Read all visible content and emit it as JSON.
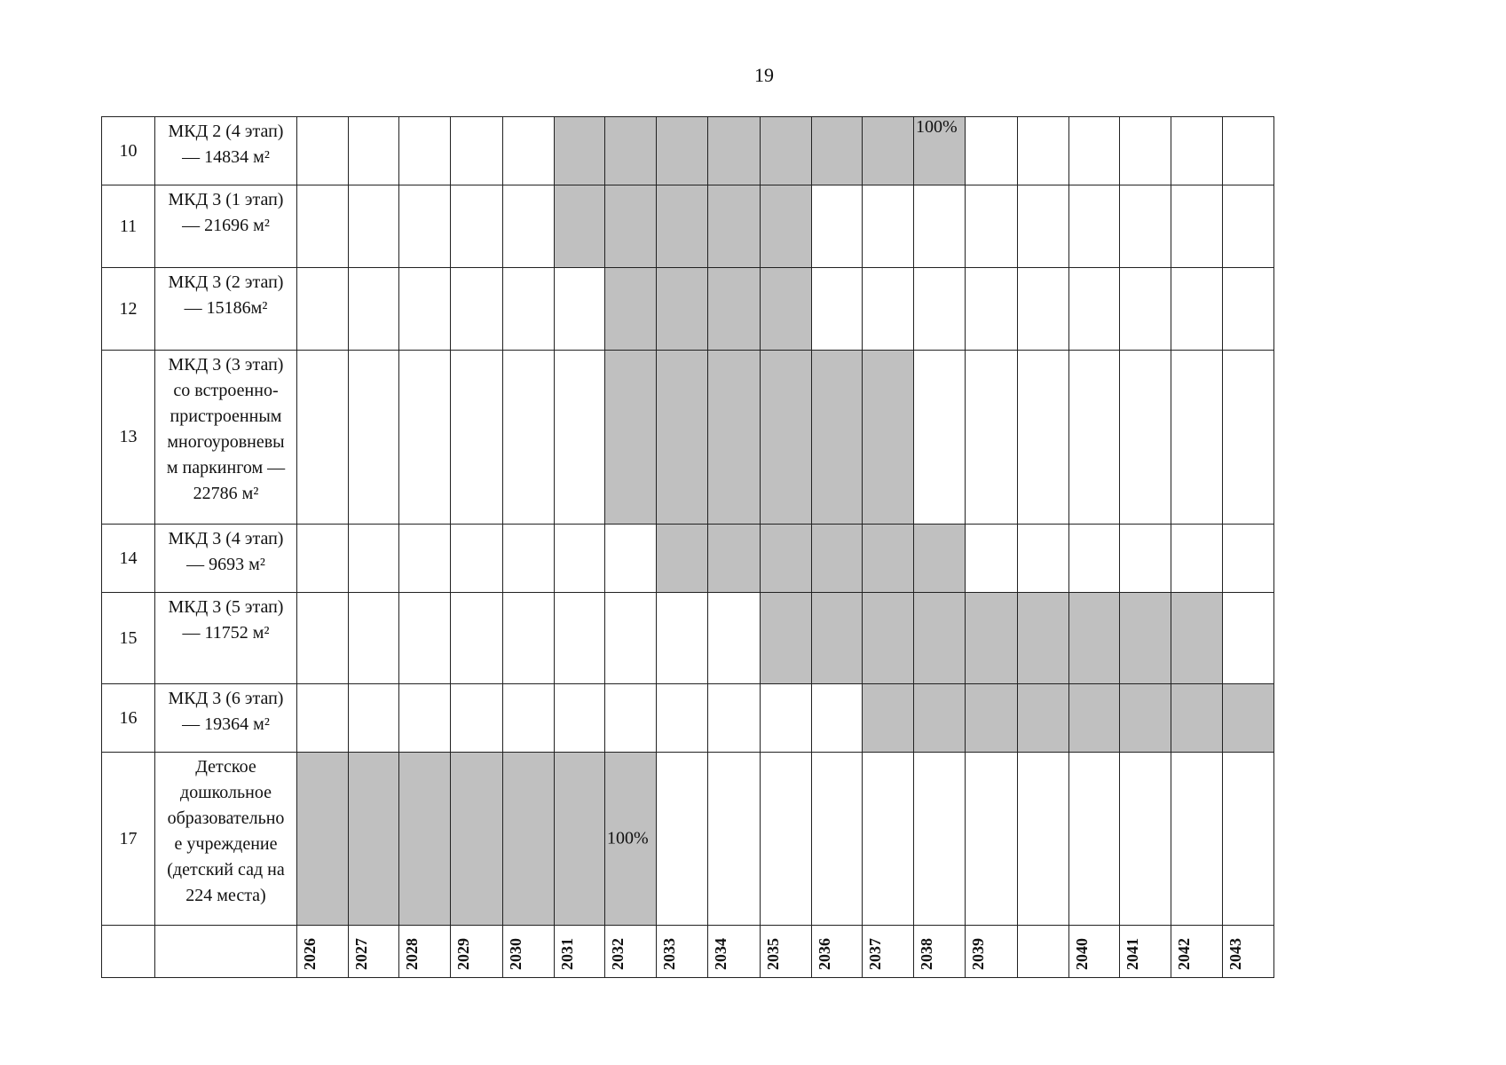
{
  "page_number": "19",
  "rows": [
    {
      "number": "10",
      "label": [
        "МКД 2 (4 этап)",
        "— 14834 м²"
      ],
      "note": "100%"
    },
    {
      "number": "11",
      "label": [
        "МКД 3 (1 этап)",
        "— 21696 м²"
      ]
    },
    {
      "number": "12",
      "label": [
        "МКД 3 (2 этап)",
        "— 15186м²"
      ]
    },
    {
      "number": "13",
      "label": [
        "МКД 3 (3 этап)",
        "со встроенно-",
        "пристроенным",
        "многоуровневы",
        "м паркингом —",
        "22786 м²"
      ]
    },
    {
      "number": "14",
      "label": [
        "МКД 3 (4 этап)",
        "— 9693 м²"
      ]
    },
    {
      "number": "15",
      "label": [
        "МКД 3 (5 этап)",
        "— 11752 м²"
      ]
    },
    {
      "number": "16",
      "label": [
        "МКД 3 (6 этап)",
        "— 19364 м²"
      ]
    },
    {
      "number": "17",
      "label": [
        "Детское",
        "дошкольное",
        "образовательно",
        "е учреждение",
        "(детский сад на",
        "224 места)"
      ],
      "note": "100%"
    }
  ],
  "years": [
    "2026",
    "2027",
    "2028",
    "2029",
    "2030",
    "2031",
    "2032",
    "2033",
    "2034",
    "2035",
    "2036",
    "2037",
    "2038",
    "2039",
    null,
    "2040",
    "2041",
    "2042",
    "2043"
  ]
}
